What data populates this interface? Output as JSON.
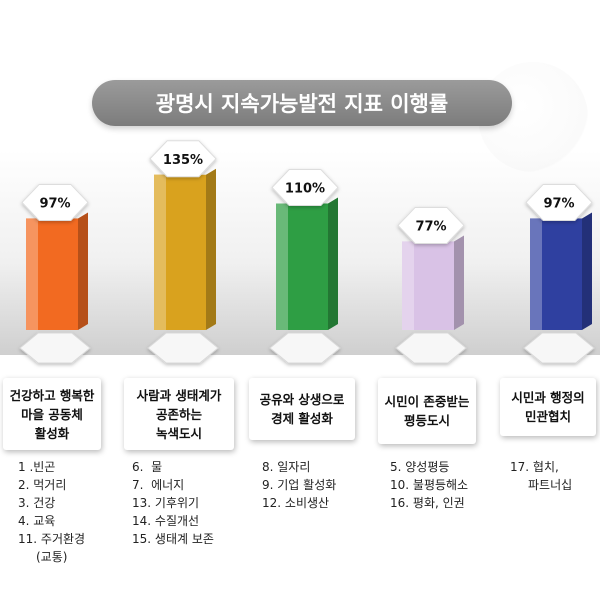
{
  "chart_data": {
    "type": "bar",
    "title": "광명시 지속가능발전 지표 이행률",
    "categories": [
      "건강하고 행복한\n마을 공동체\n활성화",
      "사람과 생태계가\n공존하는\n녹색도시",
      "공유와 상생으로\n경제 활성화",
      "시민이 존중받는\n평등도시",
      "시민과 행정의\n민관협치"
    ],
    "values": [
      97,
      135,
      110,
      77,
      97
    ],
    "value_labels": [
      "97%",
      "135%",
      "110%",
      "77%",
      "97%"
    ],
    "colors": [
      "#f26a21",
      "#d9a21e",
      "#2e9e44",
      "#d9c2e6",
      "#2f40a0"
    ],
    "ylabel": "",
    "grid": false
  },
  "goal_lists": [
    [
      "1 .빈곤",
      "2. 먹거리",
      "3. 건강",
      "4. 교육",
      "11. 주거환경",
      "(교통)"
    ],
    [
      "6.  물",
      "7.  에너지",
      "13. 기후위기",
      "14. 수질개선",
      "15. 생태계 보존"
    ],
    [
      "8. 일자리",
      "9. 기업 활성화",
      "12. 소비생산"
    ],
    [
      "5. 양성평등",
      "10. 불평등해소",
      "16. 평화, 인권"
    ],
    [
      "17. 협치,",
      "파트너십"
    ]
  ]
}
